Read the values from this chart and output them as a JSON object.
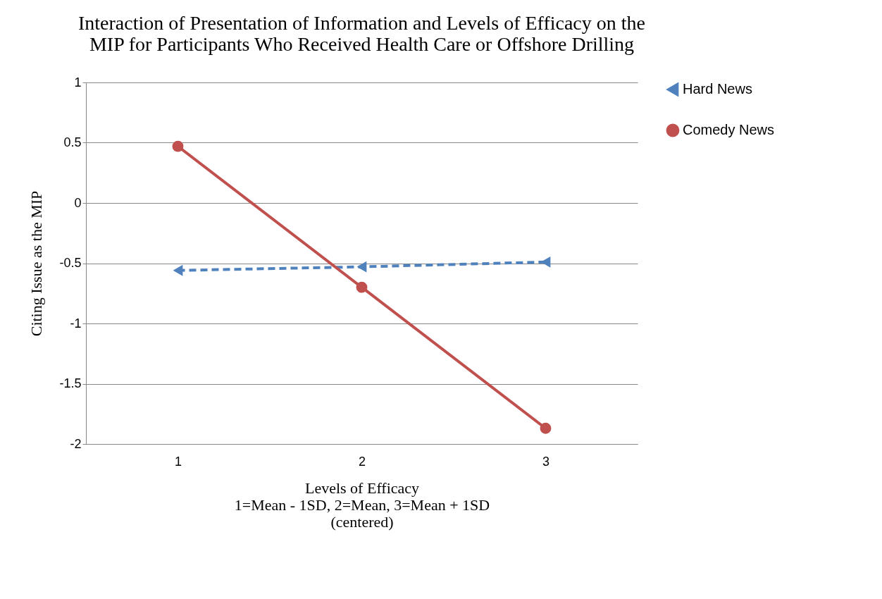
{
  "chart_data": {
    "type": "line",
    "title": "Interaction of Presentation of Information and Levels of Efficacy on the\nMIP for Participants Who Received Health Care or Offshore Drilling",
    "xlabel": "Levels of Efficacy\n1=Mean - 1SD, 2=Mean, 3=Mean + 1SD\n(centered)",
    "ylabel": "Citing Issue as the MIP",
    "categories": [
      "1",
      "2",
      "3"
    ],
    "series": [
      {
        "name": "Hard News",
        "color": "#4f81bd",
        "values": [
          -0.56,
          -0.53,
          -0.49
        ],
        "marker": "triangle",
        "line_style": "dashed"
      },
      {
        "name": "Comedy News",
        "color": "#c0504d",
        "values": [
          0.47,
          -0.7,
          -1.87
        ],
        "marker": "circle",
        "line_style": "solid"
      }
    ],
    "ylim": [
      -2,
      1
    ],
    "yticks": [
      -2,
      -1.5,
      -1,
      -0.5,
      0,
      0.5,
      1
    ],
    "grid": "y",
    "legend": "right"
  }
}
